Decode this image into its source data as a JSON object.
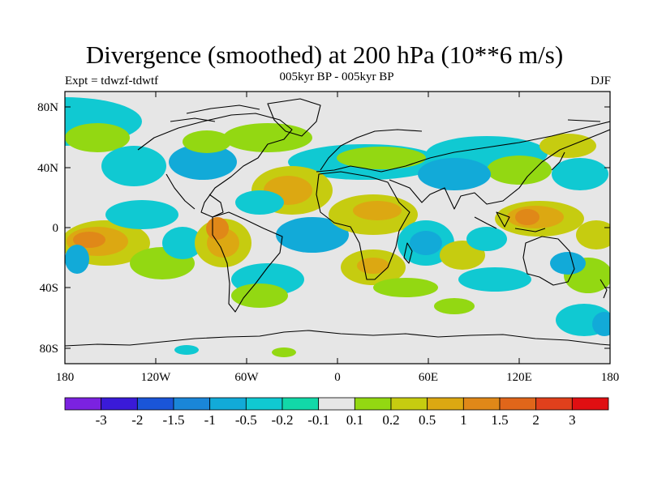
{
  "figure": {
    "title": "Divergence (smoothed) at 200 hPa (10**6 m/s)",
    "subtitle_left": "Expt = tdwzf-tdwtf",
    "subtitle_center": "005kyr BP - 005kyr BP",
    "subtitle_right": "DJF"
  },
  "axes": {
    "y_ticks": [
      "80N",
      "40N",
      "0",
      "40S",
      "80S"
    ],
    "x_ticks": [
      "180",
      "120W",
      "60W",
      "0",
      "60E",
      "120E",
      "180"
    ]
  },
  "colorbar": {
    "labels": [
      "-3",
      "-2",
      "-1.5",
      "-1",
      "-0.5",
      "-0.2",
      "-0.1",
      "0.1",
      "0.2",
      "0.5",
      "1",
      "1.5",
      "2",
      "3"
    ],
    "colors": [
      "#7b22e0",
      "#3a1ad8",
      "#1a55d8",
      "#1a86d8",
      "#12aad8",
      "#10c9d2",
      "#12d8a8",
      "#e6e6e6",
      "#93d812",
      "#c6cc10",
      "#dca812",
      "#e08818",
      "#e0661a",
      "#e0401c",
      "#e00f12"
    ]
  },
  "map_colors": {
    "neutral": "#e6e6e6",
    "neg1": "#10c9d2",
    "neg2": "#12aad8",
    "neg3": "#1a86d8",
    "pos1": "#93d812",
    "pos2": "#c6cc10",
    "pos3": "#dca812",
    "pos4": "#e08818",
    "pos5": "#e0661a"
  }
}
